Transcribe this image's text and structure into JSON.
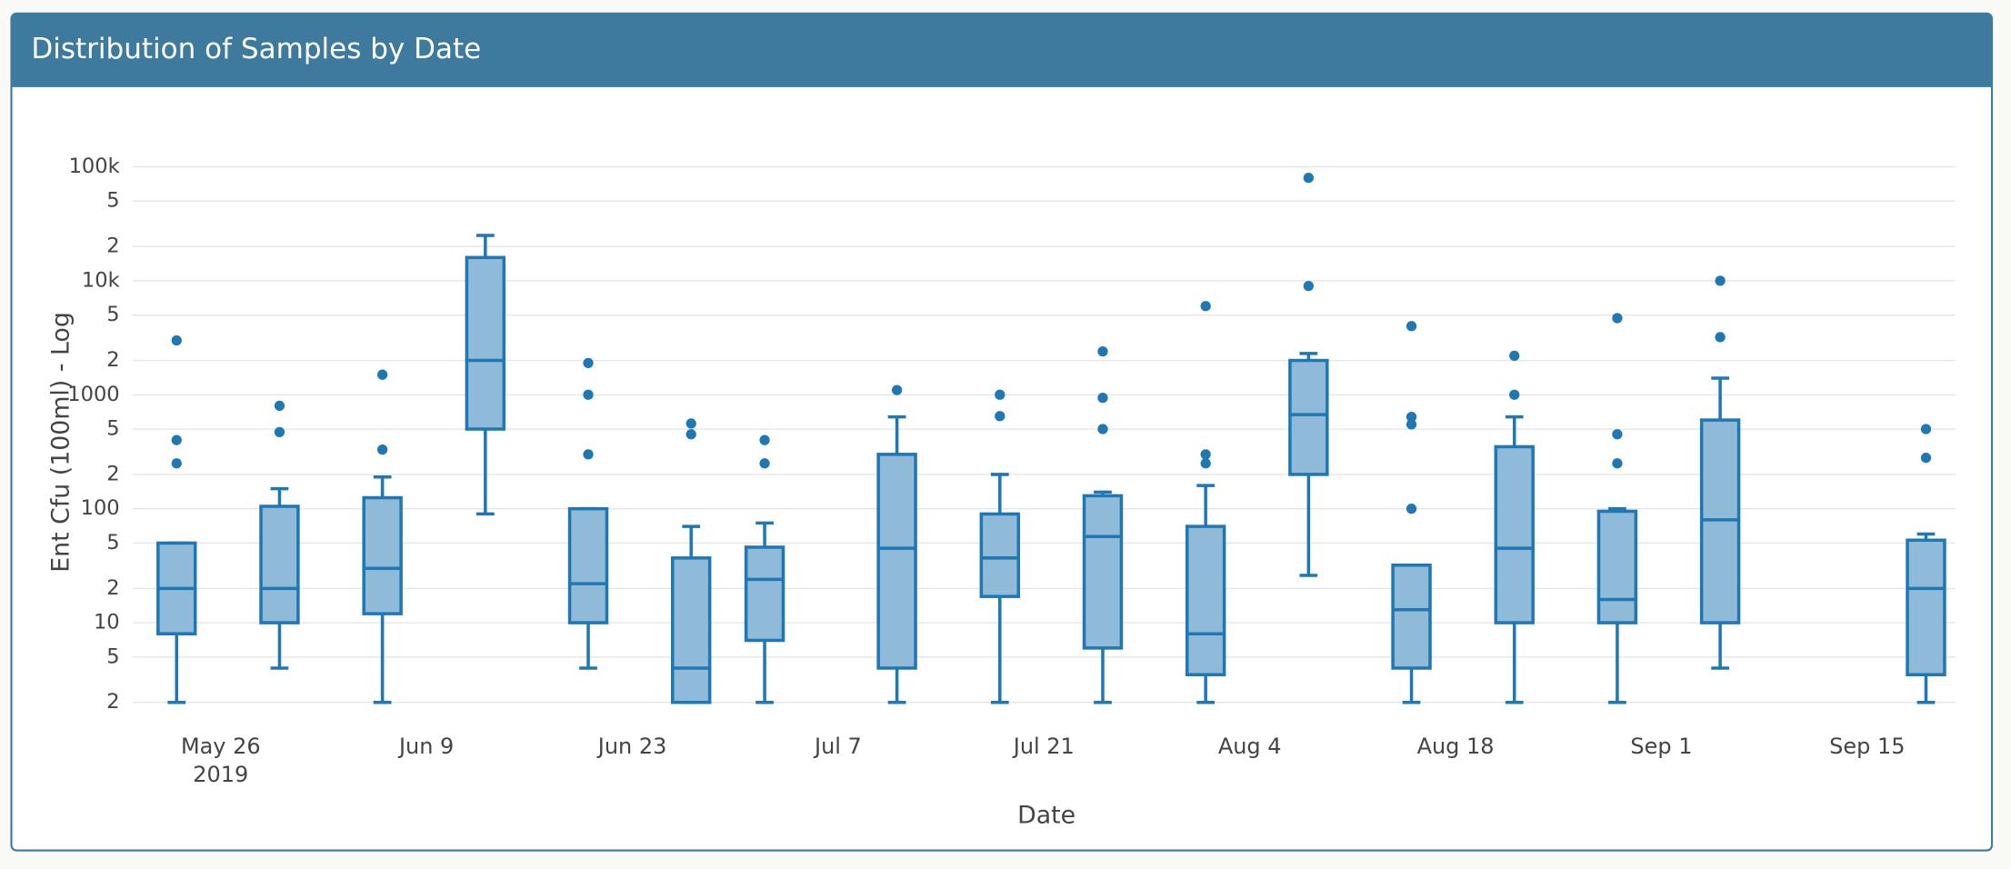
{
  "chart_data": {
    "type": "box",
    "title": "Distribution of Samples by Date",
    "x_label": "Date",
    "y_label": "Ent Cfu (100ml) - Log",
    "log_y": true,
    "grid": true,
    "color": "#1f77b4",
    "fill": "#8fbbd9",
    "xlim": [
      "2019-05-20",
      "2019-09-21"
    ],
    "xticks": [
      {
        "value": "2019-05-26",
        "label": "May 26",
        "label2": "2019"
      },
      {
        "value": "2019-06-09",
        "label": "Jun 9"
      },
      {
        "value": "2019-06-23",
        "label": "Jun 23"
      },
      {
        "value": "2019-07-07",
        "label": "Jul 7"
      },
      {
        "value": "2019-07-21",
        "label": "Jul 21"
      },
      {
        "value": "2019-08-04",
        "label": "Aug 4"
      },
      {
        "value": "2019-08-18",
        "label": "Aug 18"
      },
      {
        "value": "2019-09-01",
        "label": "Sep 1"
      },
      {
        "value": "2019-09-15",
        "label": "Sep 15"
      }
    ],
    "ylim": [
      1.9,
      130000
    ],
    "yticks": [
      2,
      5,
      10,
      {
        "value": 20,
        "label": "2"
      },
      {
        "value": 50,
        "label": "5"
      },
      100,
      {
        "value": 200,
        "label": "2"
      },
      {
        "value": 500,
        "label": "5"
      },
      1000,
      {
        "value": 2000,
        "label": "2"
      },
      {
        "value": 5000,
        "label": "5"
      },
      {
        "value": 10000,
        "label": "10k"
      },
      {
        "value": 20000,
        "label": "2"
      },
      {
        "value": 50000,
        "label": "5"
      },
      {
        "value": 100000,
        "label": "100k"
      }
    ],
    "boxes": [
      {
        "x": "2019-05-23",
        "lower": 2,
        "q1": 8,
        "median": 20,
        "q3": 50,
        "upper": 50,
        "outliers": [
          3000,
          400,
          250
        ]
      },
      {
        "x": "2019-05-30",
        "lower": 4,
        "q1": 10,
        "median": 20,
        "q3": 105,
        "upper": 150,
        "outliers": [
          800,
          470
        ]
      },
      {
        "x": "2019-06-06",
        "lower": 2,
        "q1": 12,
        "median": 30,
        "q3": 125,
        "upper": 190,
        "outliers": [
          1500,
          330
        ]
      },
      {
        "x": "2019-06-13",
        "lower": 90,
        "q1": 500,
        "median": 2000,
        "q3": 16000,
        "upper": 25000,
        "outliers": []
      },
      {
        "x": "2019-06-20",
        "lower": 4,
        "q1": 10,
        "median": 22,
        "q3": 100,
        "upper": 100,
        "outliers": [
          1900,
          1000,
          300
        ]
      },
      {
        "x": "2019-06-27",
        "lower": 2,
        "q1": 2,
        "median": 4,
        "q3": 37,
        "upper": 70,
        "outliers": [
          560,
          450
        ]
      },
      {
        "x": "2019-07-02",
        "lower": 2,
        "q1": 7,
        "median": 24,
        "q3": 46,
        "upper": 75,
        "outliers": [
          400,
          250
        ]
      },
      {
        "x": "2019-07-11",
        "lower": 2,
        "q1": 4,
        "median": 45,
        "q3": 300,
        "upper": 640,
        "outliers": [
          1100
        ]
      },
      {
        "x": "2019-07-18",
        "lower": 2,
        "q1": 17,
        "median": 37,
        "q3": 90,
        "upper": 200,
        "outliers": [
          1000,
          650
        ]
      },
      {
        "x": "2019-07-25",
        "lower": 2,
        "q1": 6,
        "median": 57,
        "q3": 130,
        "upper": 140,
        "outliers": [
          2400,
          940,
          500
        ]
      },
      {
        "x": "2019-08-01",
        "lower": 2,
        "q1": 3.5,
        "median": 8,
        "q3": 70,
        "upper": 160,
        "outliers": [
          6000,
          300,
          250
        ]
      },
      {
        "x": "2019-08-08",
        "lower": 26,
        "q1": 200,
        "median": 670,
        "q3": 2000,
        "upper": 2300,
        "outliers": [
          80000,
          9000
        ]
      },
      {
        "x": "2019-08-15",
        "lower": 2,
        "q1": 4,
        "median": 13,
        "q3": 32,
        "upper": 32,
        "outliers": [
          4000,
          640,
          550,
          100
        ]
      },
      {
        "x": "2019-08-22",
        "lower": 2,
        "q1": 10,
        "median": 45,
        "q3": 350,
        "upper": 640,
        "outliers": [
          2200,
          1000
        ]
      },
      {
        "x": "2019-08-29",
        "lower": 2,
        "q1": 10,
        "median": 16,
        "q3": 95,
        "upper": 100,
        "outliers": [
          4700,
          450,
          250
        ]
      },
      {
        "x": "2019-09-05",
        "lower": 4,
        "q1": 10,
        "median": 80,
        "q3": 600,
        "upper": 1400,
        "outliers": [
          10000,
          3200
        ]
      },
      {
        "x": "2019-09-19",
        "lower": 2,
        "q1": 3.5,
        "median": 20,
        "q3": 53,
        "upper": 60,
        "outliers": [
          500,
          280
        ]
      }
    ]
  }
}
